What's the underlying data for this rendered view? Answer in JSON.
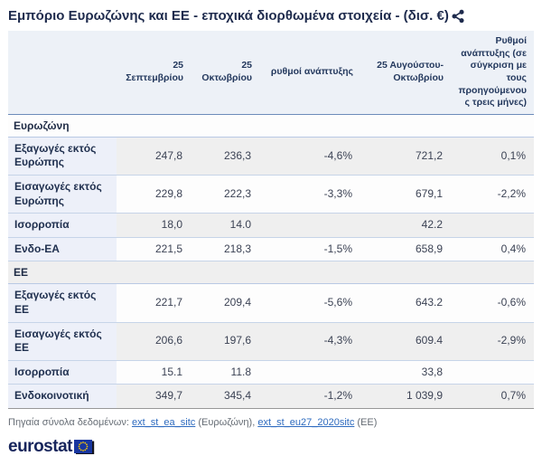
{
  "title": "Εμπόριο Ευρωζώνης και ΕΕ - εποχικά διορθωμένα στοιχεία - (δισ. €)",
  "table": {
    "columns": [
      "",
      "25 Σεπτεμβρίου",
      "25 Οκτωβρίου",
      "ρυθμοί ανάπτυξης",
      "25 Αυγούστου-Οκτωβρίου",
      "Ρυθμοί ανάπτυξης (σε σύγκριση με τους προηγούμενους τρεις μήνες)"
    ],
    "sections": [
      {
        "name": "Ευρωζώνη",
        "rows": [
          {
            "label": "Εξαγωγές εκτός Ευρώπης",
            "values": [
              "247,8",
              "236,3",
              "-4,6%",
              "721,2",
              "0,1%"
            ]
          },
          {
            "label": "Εισαγωγές εκτός Ευρώπης",
            "values": [
              "229,8",
              "222,3",
              "-3,3%",
              "679,1",
              "-2,2%"
            ]
          },
          {
            "label": "Ισορροπία",
            "values": [
              "18,0",
              "14.0",
              "",
              "42.2",
              ""
            ]
          },
          {
            "label": "Ενδο-ΕΑ",
            "values": [
              "221,5",
              "218,3",
              "-1,5%",
              "658,9",
              "0,4%"
            ]
          }
        ]
      },
      {
        "name": "ΕΕ",
        "rows": [
          {
            "label": "Εξαγωγές εκτός ΕΕ",
            "values": [
              "221,7",
              "209,4",
              "-5,6%",
              "643.2",
              "-0,6%"
            ]
          },
          {
            "label": "Εισαγωγές εκτός ΕΕ",
            "values": [
              "206,6",
              "197,6",
              "-4,3%",
              "609.4",
              "-2,9%"
            ]
          },
          {
            "label": "Ισορροπία",
            "values": [
              "15.1",
              "11.8",
              "",
              "33,8",
              ""
            ]
          },
          {
            "label": "Ενδοκοινοτική",
            "values": [
              "349,7",
              "345,4",
              "-1,2%",
              "1 039,9",
              "0,7%"
            ]
          }
        ]
      }
    ]
  },
  "footer": {
    "prefix": "Πηγαία σύνολα δεδομένων:",
    "link1": "ext_st_ea_sitc",
    "mid": "(Ευρωζώνη),",
    "link2": "ext_st_eu27_2020sitc",
    "suffix": "(ΕΕ)"
  },
  "logo": {
    "text": "eurostat"
  },
  "icons": {
    "share": "share-icon",
    "flag": "eu-flag-icon"
  },
  "colors": {
    "title_text": "#1e2b4d",
    "header_bg": "#edf1f7",
    "stripe_gray": "#efefef",
    "label_col_bg": "#edf0f9",
    "section_border_top": "#4a4a4a",
    "row_border": "#c6d4e8",
    "link": "#2e6bbf",
    "logo_navy": "#17255c",
    "flag_blue": "#18369f",
    "flag_stars": "#ffcc00"
  }
}
